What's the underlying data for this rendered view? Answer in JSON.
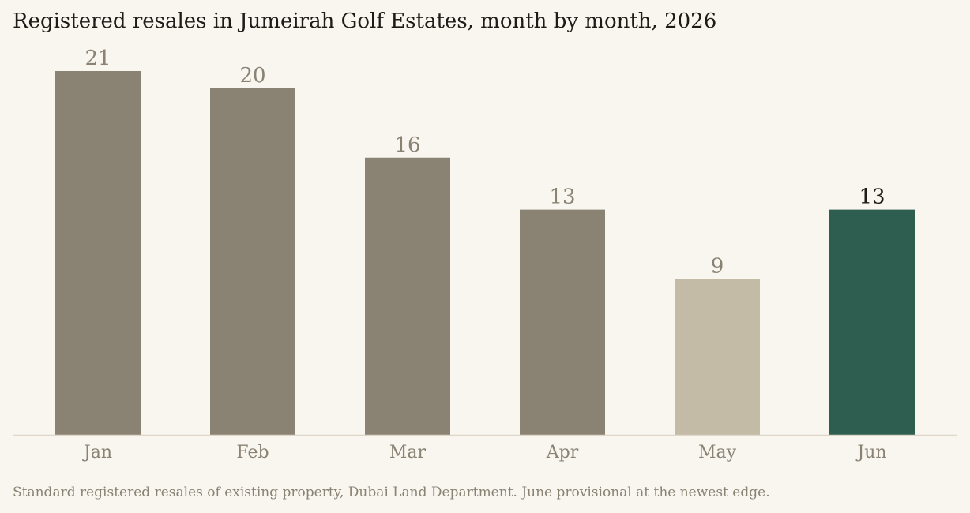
{
  "chart_data": {
    "type": "bar",
    "title": "Registered resales in Jumeirah Golf Estates, month by month, 2026",
    "categories": [
      "Jan",
      "Feb",
      "Mar",
      "Apr",
      "May",
      "Jun"
    ],
    "values": [
      21,
      20,
      16,
      13,
      9,
      13
    ],
    "bar_colors": [
      "#8a8373",
      "#8a8373",
      "#8a8373",
      "#8a8373",
      "#c4bba7",
      "#2e5e4f"
    ],
    "value_label_colors": [
      "#8a8374",
      "#8a8374",
      "#8a8374",
      "#8a8374",
      "#8a8374",
      "#1e1c19"
    ],
    "ylim": [
      0,
      21
    ],
    "xlabel": "",
    "ylabel": "",
    "grid": false,
    "legend": "none",
    "note": "Standard registered resales of existing property, Dubai Land Department. June provisional at the newest edge."
  },
  "colors": {
    "background": "#f9f5ef",
    "baseline": "#ddd6c9",
    "tick_label": "#8a8374",
    "title": "#1e1c19"
  }
}
